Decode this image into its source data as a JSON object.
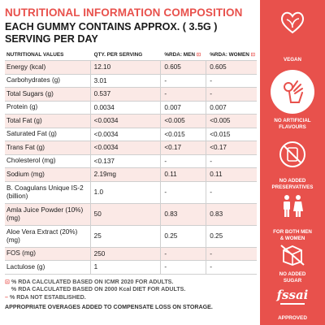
{
  "header": {
    "title": "NUTRITIONAL INFORMATION COMPOSITION",
    "subtitle": "EACH GUMMY CONTAINS APPROX. ( 3.5G ) SERVING PER DAY"
  },
  "table": {
    "columns": [
      "NUTRITIONAL VALUES",
      "QTY. PER SERVING",
      "%RDA: MEN",
      "%RDA: WOMEN"
    ],
    "flag_symbol": "⊡",
    "rows": [
      {
        "name": "Energy (kcal)",
        "qty": "12.10",
        "men": "0.605",
        "women": "0.605"
      },
      {
        "name": "Carbohydrates (g)",
        "qty": "3.01",
        "men": "-",
        "women": "-"
      },
      {
        "name": "Total Sugars (g)",
        "qty": "0.537",
        "men": "-",
        "women": "-"
      },
      {
        "name": "Protein (g)",
        "qty": "0.0034",
        "men": "0.007",
        "women": "0.007"
      },
      {
        "name": "Total Fat (g)",
        "qty": "<0.0034",
        "men": "<0.005",
        "women": "<0.005"
      },
      {
        "name": "Saturated Fat (g)",
        "qty": "<0.0034",
        "men": "<0.015",
        "women": "<0.015"
      },
      {
        "name": "Trans Fat (g)",
        "qty": "<0.0034",
        "men": "<0.17",
        "women": "<0.17"
      },
      {
        "name": "Cholesterol (mg)",
        "qty": "<0.137",
        "men": "-",
        "women": "-"
      },
      {
        "name": "Sodium (mg)",
        "qty": "2.19mg",
        "men": "0.11",
        "women": "0.11"
      },
      {
        "name": "B. Coagulans Unique IS-2 (billion)",
        "qty": "1.0",
        "men": "-",
        "women": "-"
      },
      {
        "name": "Amla Juice Powder (10%) (mg)",
        "qty": "50",
        "men": "0.83",
        "women": "0.83"
      },
      {
        "name": "Aloe Vera Extract (20%) (mg)",
        "qty": "25",
        "men": "0.25",
        "women": "0.25"
      },
      {
        "name": "FOS (mg)",
        "qty": "250",
        "men": "-",
        "women": "-"
      },
      {
        "name": "Lactulose (g)",
        "qty": "1",
        "men": "-",
        "women": "-"
      }
    ]
  },
  "notes": {
    "line1_symbol": "⊡",
    "line1": "% RDA CALCULATED BASED ON ICMR 2020 FOR ADULTS.",
    "line2": "% RDA CALCULATED BASED ON 2000 Kcal DIET FOR ADULTS.",
    "line3_symbol": "–",
    "line3": "% RDA NOT ESTABLISHED.",
    "overages": "APPROPRIATE OVERAGES ADDED TO COMPENSATE LOSS ON STORAGE."
  },
  "badges": {
    "vegan": "VEGAN",
    "no_artificial_1": "NO ARTIFICIAL",
    "no_artificial_2": "FLAVOURS",
    "no_preservatives_1": "NO ADDED",
    "no_preservatives_2": "PRESERVATIVES",
    "both_1": "FOR BOTH MEN",
    "both_2": "& WOMEN",
    "no_sugar_1": "NO ADDED",
    "no_sugar_2": "SUGAR",
    "fssai": "fssai",
    "approved": "APPROVED"
  },
  "colors": {
    "accent": "#e8514c",
    "row_shade": "#fbe9e6"
  },
  "icons": [
    "heart-leaf-icon",
    "hand-ok-icon",
    "no-preservatives-icon",
    "man-woman-icon",
    "no-sugar-icon",
    "fssai-logo"
  ]
}
